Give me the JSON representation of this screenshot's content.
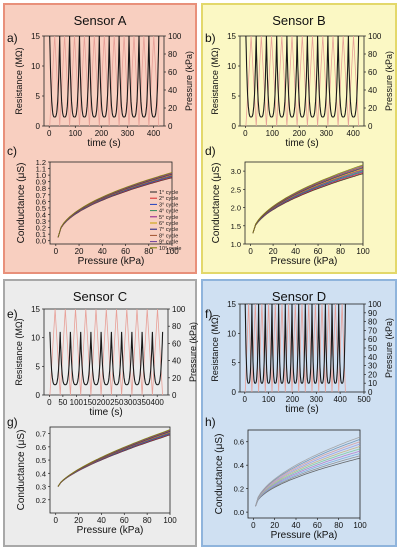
{
  "panels": [
    {
      "id": "A",
      "title": "Sensor A",
      "bg": "#f8cfc0",
      "border": "#e8907a",
      "top_chart": {
        "letter": "a)",
        "type": "line",
        "xlabel": "time (s)",
        "ylabel_left": "Resistance (MΩ)",
        "ylabel_right": "Pressure (kPa)",
        "xlim": [
          -20,
          440
        ],
        "xticks": [
          0,
          100,
          200,
          300,
          400
        ],
        "ylim_left": [
          0,
          15
        ],
        "yticks_left": [
          0,
          5,
          10,
          15
        ],
        "ylim_right": [
          0,
          100
        ],
        "yticks_right": [
          0,
          20,
          40,
          60,
          80,
          100
        ],
        "series": [
          {
            "role": "pressure",
            "color": "#e8a098",
            "cycles": 11,
            "period": 38,
            "t0": 2,
            "peak": 100
          },
          {
            "role": "resistance",
            "color": "#1a1a1a",
            "cycles": 11,
            "period": 38,
            "t0": 2,
            "min": 1.5,
            "spike": 15
          }
        ]
      },
      "bottom_chart": {
        "letter": "c)",
        "type": "line",
        "xlabel": "Pressure (kPa)",
        "ylabel": "Conductance (μS)",
        "xlim": [
          -5,
          100
        ],
        "xticks": [
          0,
          20,
          40,
          60,
          80,
          100
        ],
        "ylim": [
          -0.05,
          1.2
        ],
        "yticks": [
          0.0,
          0.1,
          0.2,
          0.3,
          0.4,
          0.5,
          0.6,
          0.7,
          0.8,
          0.9,
          1.0,
          1.1,
          1.2
        ],
        "curve": {
          "x0": 2,
          "y0": 0.05,
          "y100": 1.0,
          "exp": 0.5,
          "spread": 0.04
        },
        "legend": [
          "1° cycle",
          "2° cycle",
          "3° cycle",
          "4° cycle",
          "5° cycle",
          "6° cycle",
          "7° cycle",
          "8° cycle",
          "9° cycle",
          "10° cycle"
        ],
        "series_colors": [
          "#222222",
          "#d62728",
          "#1f3fbf",
          "#2e8b57",
          "#8b1a8b",
          "#c8a000",
          "#1a1a7a",
          "#a0522d",
          "#6a3d9a",
          "#808000"
        ]
      }
    },
    {
      "id": "B",
      "title": "Sensor B",
      "bg": "#fbf8c4",
      "border": "#e3d86a",
      "top_chart": {
        "letter": "b)",
        "type": "line",
        "xlabel": "time (s)",
        "ylabel_left": "Resistance (MΩ)",
        "ylabel_right": "Pressure (kPa)",
        "xlim": [
          -20,
          440
        ],
        "xticks": [
          0,
          100,
          200,
          300,
          400
        ],
        "ylim_left": [
          0,
          15
        ],
        "yticks_left": [
          0,
          5,
          10,
          15
        ],
        "ylim_right": [
          0,
          100
        ],
        "yticks_right": [
          0,
          20,
          40,
          60,
          80,
          100
        ],
        "series": [
          {
            "role": "pressure",
            "color": "#e8a098",
            "cycles": 11,
            "period": 38,
            "t0": 2,
            "peak": 100
          },
          {
            "role": "resistance",
            "color": "#1a1a1a",
            "cycles": 11,
            "period": 38,
            "t0": 2,
            "min": 1.5,
            "spike": 15
          }
        ]
      },
      "bottom_chart": {
        "letter": "d)",
        "type": "line",
        "xlabel": "Pressure (kPa)",
        "ylabel": "Conductance (μS)",
        "xlim": [
          -5,
          100
        ],
        "xticks": [
          0,
          20,
          40,
          60,
          80,
          100
        ],
        "ylim": [
          1.0,
          3.25
        ],
        "yticks": [
          1.0,
          1.5,
          2.0,
          2.5,
          3.0
        ],
        "curve": {
          "x0": 2,
          "y0": 1.3,
          "y100": 3.05,
          "exp": 0.55,
          "spread": 0.12
        },
        "legend": [],
        "series_colors": [
          "#222222",
          "#d62728",
          "#1f3fbf",
          "#2e8b57",
          "#8b1a8b",
          "#c8a000",
          "#1a1a7a",
          "#a0522d",
          "#6a3d9a",
          "#808000"
        ]
      }
    },
    {
      "id": "C",
      "title": "Sensor C",
      "bg": "#ececec",
      "border": "#a8a8a8",
      "top_chart": {
        "letter": "e)",
        "type": "line",
        "xlabel": "time (s)",
        "ylabel_left": "Resistance (MΩ)",
        "ylabel_right": "Pressure (kPa)",
        "xlim": [
          -20,
          440
        ],
        "xticks": [
          0,
          50,
          100,
          150,
          200,
          250,
          300,
          350,
          400
        ],
        "ylim_left": [
          0,
          15
        ],
        "yticks_left": [
          0,
          5,
          10,
          15
        ],
        "ylim_right": [
          0,
          100
        ],
        "yticks_right": [
          0,
          20,
          40,
          60,
          80,
          100
        ],
        "series": [
          {
            "role": "pressure",
            "color": "#e8a098",
            "cycles": 11,
            "period": 38,
            "t0": 2,
            "peak": 100
          },
          {
            "role": "resistance",
            "color": "#1a1a1a",
            "cycles": 11,
            "period": 38,
            "t0": 2,
            "min": 1.8,
            "spike": 11
          }
        ]
      },
      "bottom_chart": {
        "letter": "g)",
        "type": "line",
        "xlabel": "Pressure (kPa)",
        "ylabel": "Conductance (μS)",
        "xlim": [
          -5,
          100
        ],
        "xticks": [
          0,
          20,
          40,
          60,
          80,
          100
        ],
        "ylim": [
          0.1,
          0.75
        ],
        "yticks": [
          0.2,
          0.3,
          0.4,
          0.5,
          0.6,
          0.7
        ],
        "curve": {
          "x0": 2,
          "y0": 0.3,
          "y100": 0.71,
          "exp": 0.7,
          "spread": 0.02
        },
        "legend": [],
        "series_colors": [
          "#222222",
          "#d62728",
          "#1f3fbf",
          "#2e8b57",
          "#8b1a8b",
          "#c8a000",
          "#1a1a7a",
          "#a0522d",
          "#6a3d9a",
          "#808000"
        ]
      }
    },
    {
      "id": "D",
      "title": "Sensor D",
      "bg": "#cfe0f2",
      "border": "#8fb4dc",
      "top_chart": {
        "letter": "f)",
        "type": "line",
        "xlabel": "time (s)",
        "ylabel_left": "Resistance (MΩ)",
        "ylabel_right": "Pressure (kPa)",
        "xlim": [
          -20,
          500
        ],
        "xticks": [
          0,
          100,
          200,
          300,
          400,
          500
        ],
        "ylim_left": [
          0,
          15
        ],
        "yticks_left": [
          0,
          5,
          10,
          15
        ],
        "ylim_right": [
          0,
          100
        ],
        "yticks_right": [
          0,
          10,
          20,
          30,
          40,
          50,
          60,
          70,
          80,
          90,
          100
        ],
        "series": [
          {
            "role": "pressure",
            "color": "#e8a098",
            "cycles": 15,
            "period": 28,
            "t0": 2,
            "peak": 100
          },
          {
            "role": "resistance",
            "color": "#1a1a1a",
            "cycles": 15,
            "period": 28,
            "t0": 2,
            "min": 1.5,
            "spike": 15
          }
        ]
      },
      "bottom_chart": {
        "letter": "h)",
        "type": "line",
        "xlabel": "Pressure (kPa)",
        "ylabel": "Conductance (μS)",
        "xlim": [
          -5,
          100
        ],
        "xticks": [
          0,
          20,
          40,
          60,
          80,
          100
        ],
        "ylim": [
          -0.05,
          0.7
        ],
        "yticks": [
          0.0,
          0.2,
          0.4,
          0.6
        ],
        "curve": {
          "x0": 2,
          "y0": 0.05,
          "y100": 0.55,
          "exp": 0.55,
          "spread": 0.09
        },
        "legend": [],
        "series_colors": [
          "#555555",
          "#888888",
          "#7aa7d8",
          "#b07ac8",
          "#7ac89c",
          "#c8b07a",
          "#9a9adf",
          "#d89a9a",
          "#6a8fb0",
          "#a0a0a0"
        ]
      }
    }
  ]
}
